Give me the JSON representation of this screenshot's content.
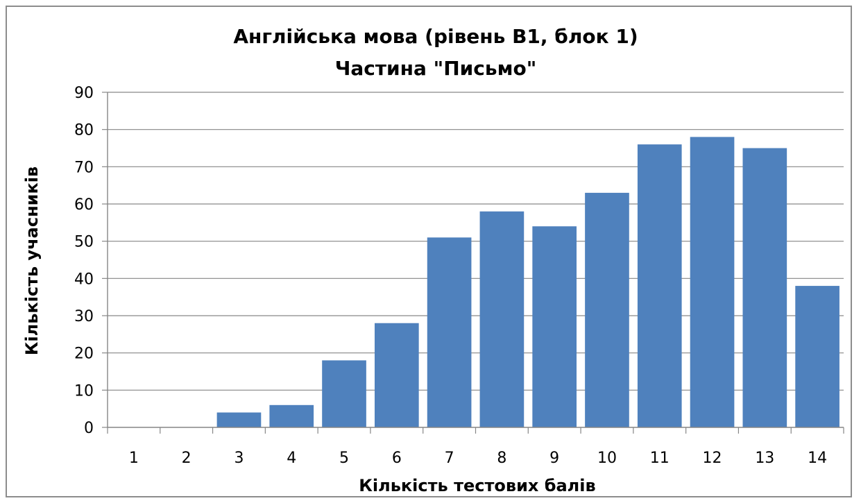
{
  "chart_data": {
    "type": "bar",
    "title_lines": [
      "Англійська мова (рівень B1, блок 1)",
      "Частина \"Письмо\""
    ],
    "xlabel": "Кількість тестових балів",
    "ylabel": "Кількість учасників",
    "categories": [
      "1",
      "2",
      "3",
      "4",
      "5",
      "6",
      "7",
      "8",
      "9",
      "10",
      "11",
      "12",
      "13",
      "14"
    ],
    "values": [
      0,
      0,
      4,
      6,
      18,
      28,
      51,
      58,
      54,
      63,
      76,
      78,
      75,
      38
    ],
    "ylim": [
      0,
      90
    ],
    "yticks": [
      "0",
      "10",
      "20",
      "30",
      "40",
      "50",
      "60",
      "70",
      "80",
      "90"
    ],
    "grid": true,
    "bar_color": "#4f81bd",
    "grid_color": "#868686"
  }
}
